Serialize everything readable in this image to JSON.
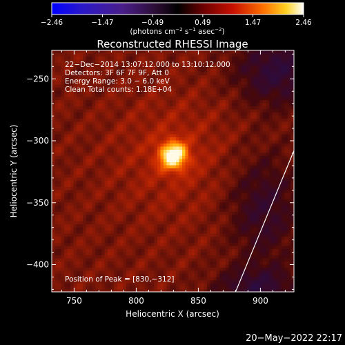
{
  "chart_data": {
    "type": "heatmap",
    "title": "Reconstructed RHESSI Image",
    "xlabel": "Heliocentric X (arcsec)",
    "ylabel": "Heliocentric Y (arcsec)",
    "xlim": [
      732,
      927
    ],
    "ylim": [
      -422,
      -227
    ],
    "x_ticks": [
      750,
      800,
      850,
      900
    ],
    "x_tick_labels": [
      "750",
      "800",
      "850",
      "900"
    ],
    "y_ticks": [
      -250,
      -300,
      -350,
      -400
    ],
    "y_tick_labels": [
      "−250",
      "−300",
      "−350",
      "−400"
    ],
    "colorbar": {
      "min": -2.46,
      "max": 2.46,
      "ticks": [
        -2.46,
        -1.47,
        -0.49,
        0.49,
        1.47,
        2.46
      ],
      "tick_labels": [
        "−2.46",
        "−1.47",
        "−0.49",
        "0.49",
        "1.47",
        "2.46"
      ],
      "units_prefix": "(photons cm",
      "units_exp1": "−2",
      "units_mid": " s",
      "units_exp2": "−1",
      "units_mid2": " asec",
      "units_exp3": "−2",
      "units_suffix": ")"
    },
    "annotations": [
      "22−Dec−2014 13:07:12.000 to 13:10:12.000",
      "Detectors: 3F 6F 7F 9F, Att 0",
      "Energy Range: 3.0 − 6.0 keV",
      "Clean    Total counts: 1.18E+04"
    ],
    "peak_label": "Position of Peak = [830,−312]",
    "peak": {
      "x": 830,
      "y": -312,
      "value": 2.46
    },
    "limb_line": [
      [
        880,
        -422
      ],
      [
        927,
        -308
      ]
    ],
    "colors": {
      "limb": "#ffffff",
      "background": "#000000"
    }
  },
  "footer": {
    "timestamp": "20−May−2022 22:17"
  }
}
